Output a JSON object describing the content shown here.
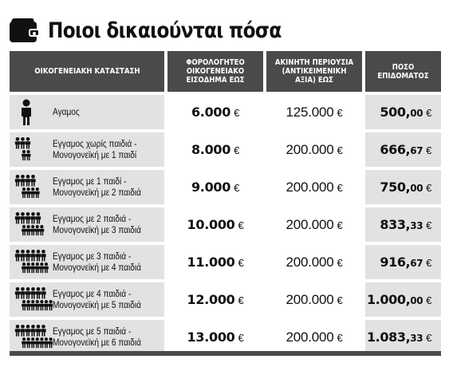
{
  "title": "Ποιοι δικαιούνται πόσα",
  "headers": {
    "status": "ΟΙΚΟΓΕΝΕΙΑΚΗ ΚΑΤΑΣΤΑΣΗ",
    "income": "ΦΟΡΟΛΟΓΗΤΕΟ ΟΙΚΟΓΕΝΕΙΑΚΟ ΕΙΣΟΔΗΜΑ ΕΩΣ",
    "property": "ΑΚΙΝΗΤΗ ΠΕΡΙΟΥΣΙΑ (ΑΝΤΙΚΕΙΜΕΝΙΚΗ ΑΞΙΑ) ΕΩΣ",
    "allowance": "ΠΟΣΟ ΕΠΙΔΟΜΑΤΟΣ"
  },
  "currency": "€",
  "rows": [
    {
      "line1": "Αγαμος",
      "line2": "",
      "income": "6.000",
      "property": "125.000",
      "amount_int": "500,",
      "amount_dec": "00",
      "adults": 1,
      "kids": 0
    },
    {
      "line1": "Εγγαμος χωρίς παιδιά -",
      "line2": "Μονογονεϊκή με 1 παιδί",
      "income": "8.000",
      "property": "200.000",
      "amount_int": "666,",
      "amount_dec": "67",
      "adults": 2,
      "kids": 1
    },
    {
      "line1": "Εγγαμος με 1 παιδί -",
      "line2": "Μονογονεϊκή με 2 παιδιά",
      "income": "9.000",
      "property": "200.000",
      "amount_int": "750,",
      "amount_dec": "00",
      "adults": 3,
      "kids": 3
    },
    {
      "line1": "Εγγαμος με 2 παιδιά -",
      "line2": "Μονογονεϊκή με 3 παιδιά",
      "income": "10.000",
      "property": "200.000",
      "amount_int": "833,",
      "amount_dec": "33",
      "adults": 4,
      "kids": 4
    },
    {
      "line1": "Εγγαμος με 3 παιδιά -",
      "line2": "Μονογονεϊκή με 4 παιδιά",
      "income": "11.000",
      "property": "200.000",
      "amount_int": "916,",
      "amount_dec": "67",
      "adults": 5,
      "kids": 5
    },
    {
      "line1": "Εγγαμος με 4 παιδιά -",
      "line2": "Μονογονεϊκή με 5 παιδιά",
      "income": "12.000",
      "property": "200.000",
      "amount_int": "1.000,",
      "amount_dec": "00",
      "adults": 6,
      "kids": 6
    },
    {
      "line1": "Εγγαμος με 5 παιδιά -",
      "line2": "Μονογονεϊκή με 6 παιδιά",
      "income": "13.000",
      "property": "200.000",
      "amount_int": "1.083,",
      "amount_dec": "33",
      "adults": 7,
      "kids": 7
    }
  ]
}
